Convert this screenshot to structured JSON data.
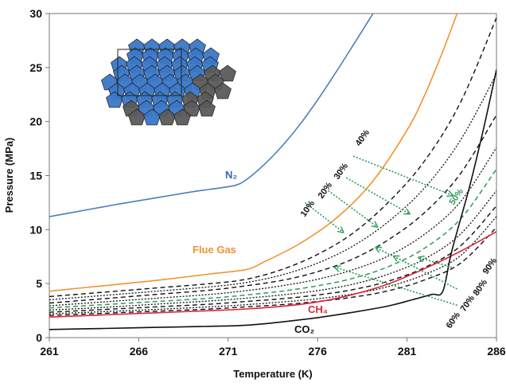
{
  "chart_data": {
    "type": "line",
    "xlabel": "Temperature (K)",
    "ylabel": "Pressure (MPa)",
    "xlim": [
      261,
      286
    ],
    "ylim": [
      0,
      30
    ],
    "xticks": [
      "261",
      "266",
      "271",
      "276",
      "281",
      "286"
    ],
    "yticks": [
      "0",
      "5",
      "10",
      "15",
      "20",
      "25",
      "30"
    ],
    "grid": false,
    "legend": "none",
    "series": [
      {
        "name": "N₂",
        "color": "#4a7ebb",
        "dash": "solid",
        "width": 1.6,
        "x": [
          261,
          263,
          265,
          267,
          269,
          270.5,
          271.4,
          272,
          273,
          274,
          275,
          276,
          277,
          278,
          279.1
        ],
        "y": [
          11.2,
          11.8,
          12.4,
          12.95,
          13.5,
          13.85,
          14.1,
          14.6,
          16.0,
          17.7,
          19.7,
          22.0,
          24.5,
          27.1,
          30
        ]
      },
      {
        "name": "Flue Gas",
        "color": "#f39230",
        "dash": "solid",
        "width": 1.6,
        "x": [
          261,
          264,
          267,
          270,
          272,
          273,
          275,
          277,
          279,
          281,
          282,
          283,
          283.8
        ],
        "y": [
          4.3,
          4.8,
          5.3,
          5.9,
          6.3,
          7.0,
          8.7,
          11.0,
          14.3,
          19.2,
          22.5,
          26.5,
          30
        ]
      },
      {
        "name": "40%",
        "color": "#111111",
        "dash": "6,4",
        "width": 1.4,
        "x": [
          261,
          264,
          267,
          270,
          272,
          274,
          276,
          278,
          280,
          282,
          284,
          286
        ],
        "y": [
          3.8,
          4.2,
          4.6,
          5.0,
          5.4,
          6.3,
          7.7,
          9.7,
          12.6,
          16.4,
          21.8,
          29.6
        ]
      },
      {
        "name": "30%",
        "color": "#111111",
        "dash": "2,2",
        "width": 1.3,
        "x": [
          261,
          264,
          267,
          270,
          272,
          274,
          276,
          278,
          280,
          282,
          284,
          286
        ],
        "y": [
          3.5,
          3.9,
          4.3,
          4.7,
          5.1,
          5.8,
          6.9,
          8.5,
          10.8,
          13.9,
          18.3,
          24.4
        ]
      },
      {
        "name": "20%",
        "color": "#111111",
        "dash": "6,4",
        "width": 1.4,
        "x": [
          261,
          264,
          267,
          270,
          272,
          274,
          276,
          278,
          280,
          282,
          284,
          286
        ],
        "y": [
          3.2,
          3.6,
          4.0,
          4.4,
          4.8,
          5.3,
          6.1,
          7.3,
          9.1,
          11.6,
          15.2,
          20.6
        ]
      },
      {
        "name": "10%",
        "color": "#111111",
        "dash": "2,2",
        "width": 1.3,
        "x": [
          261,
          264,
          267,
          270,
          272,
          274,
          276,
          278,
          280,
          282,
          284,
          286
        ],
        "y": [
          2.95,
          3.3,
          3.65,
          4.0,
          4.35,
          4.8,
          5.4,
          6.3,
          7.6,
          9.6,
          12.6,
          17.6
        ]
      },
      {
        "name": "50%",
        "color": "#2e9a5a",
        "dash": "6,4",
        "width": 1.5,
        "x": [
          261,
          264,
          267,
          270,
          272,
          274,
          276,
          278,
          280,
          282,
          284,
          286
        ],
        "y": [
          2.75,
          3.05,
          3.35,
          3.65,
          3.95,
          4.3,
          4.8,
          5.5,
          6.6,
          8.3,
          11.0,
          15.6
        ]
      },
      {
        "name": "60%",
        "color": "#111111",
        "dash": "2,2",
        "width": 1.3,
        "x": [
          261,
          264,
          267,
          270,
          272,
          274,
          276,
          278,
          280,
          282,
          284,
          286
        ],
        "y": [
          2.55,
          2.8,
          3.1,
          3.4,
          3.65,
          3.95,
          4.35,
          4.95,
          5.9,
          7.3,
          9.6,
          13.6
        ]
      },
      {
        "name": "70%",
        "color": "#111111",
        "dash": "6,4",
        "width": 1.4,
        "x": [
          261,
          264,
          267,
          270,
          272,
          274,
          276,
          278,
          280,
          282,
          284,
          286
        ],
        "y": [
          2.35,
          2.6,
          2.85,
          3.1,
          3.35,
          3.6,
          3.95,
          4.45,
          5.25,
          6.5,
          8.5,
          12.2
        ]
      },
      {
        "name": "80%",
        "color": "#111111",
        "dash": "2,2",
        "width": 1.3,
        "x": [
          261,
          264,
          267,
          270,
          272,
          274,
          276,
          278,
          280,
          282,
          284,
          286
        ],
        "y": [
          2.2,
          2.4,
          2.62,
          2.85,
          3.05,
          3.3,
          3.6,
          4.05,
          4.75,
          5.85,
          7.6,
          11.2
        ]
      },
      {
        "name": "90%",
        "color": "#111111",
        "dash": "6,4",
        "width": 1.4,
        "x": [
          261,
          264,
          267,
          270,
          272,
          274,
          276,
          278,
          280,
          282,
          284,
          286
        ],
        "y": [
          2.05,
          2.25,
          2.45,
          2.65,
          2.85,
          3.05,
          3.35,
          3.75,
          4.35,
          5.35,
          6.9,
          10.2
        ]
      },
      {
        "name": "CH₄",
        "color": "#d8283a",
        "dash": "solid",
        "width": 1.6,
        "x": [
          261,
          264,
          267,
          270,
          272,
          274,
          276,
          278,
          280,
          282,
          284,
          286
        ],
        "y": [
          1.9,
          2.1,
          2.3,
          2.5,
          2.65,
          2.9,
          3.3,
          4.0,
          5.0,
          6.4,
          8.0,
          9.8
        ]
      },
      {
        "name": "CO₂",
        "color": "#111111",
        "dash": "solid",
        "width": 1.6,
        "x": [
          261,
          264,
          267,
          270,
          272,
          274,
          276,
          278,
          280,
          281.5,
          282.4,
          283,
          283.5,
          284.5,
          285.3,
          286
        ],
        "y": [
          0.75,
          0.85,
          0.95,
          1.05,
          1.15,
          1.45,
          1.85,
          2.35,
          2.95,
          3.6,
          4.0,
          4.3,
          8.0,
          14.0,
          19.5,
          24.8
        ]
      }
    ],
    "arrows": [
      {
        "from": [
          275.3,
          12.5
        ],
        "to": [
          277.4,
          9.8
        ]
      },
      {
        "from": [
          276.6,
          13.6
        ],
        "to": [
          279.3,
          10.3
        ]
      },
      {
        "from": [
          277.6,
          14.8
        ],
        "to": [
          281.1,
          11.5
        ]
      },
      {
        "from": [
          278.0,
          16.8
        ],
        "to": [
          283.5,
          13.2
        ]
      },
      {
        "from": [
          283.5,
          6.5
        ],
        "to": [
          281.7,
          7.4
        ]
      },
      {
        "from": [
          281.6,
          6.4
        ],
        "to": [
          279.3,
          8.3
        ]
      },
      {
        "from": [
          283.8,
          4.5
        ],
        "to": [
          280.3,
          7.5
        ]
      },
      {
        "from": [
          283.8,
          3.0
        ],
        "to": [
          277.0,
          6.5
        ]
      }
    ],
    "curve_labels": {
      "n2": "N₂",
      "flue": "Flue Gas",
      "ch4": "CH₄",
      "co2": "CO₂",
      "p10": "10%",
      "p20": "20%",
      "p30": "30%",
      "p40": "40%",
      "p50": "50%",
      "p60": "60%",
      "p70": "70%",
      "p80": "80%",
      "p90": "90%"
    },
    "colors": {
      "n2": "#4a7ebb",
      "flue": "#f39230",
      "ch4": "#d8283a",
      "co2": "#111111",
      "fifty": "#2e9a5a",
      "arrow": "#2e9a5a",
      "hydrate_blue": "#3a78c8",
      "hydrate_gray": "#5a5a5a"
    },
    "inset_image": "clathrate-hydrate-cage-structure"
  }
}
